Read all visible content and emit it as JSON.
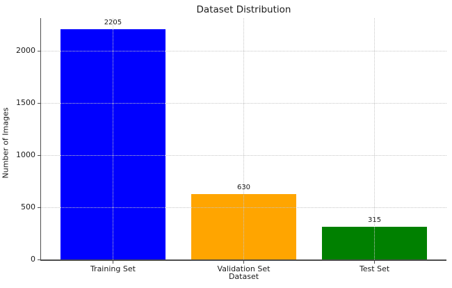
{
  "chart_data": {
    "type": "bar",
    "title": "Dataset Distribution",
    "xlabel": "Dataset",
    "ylabel": "Number of Images",
    "categories": [
      "Training Set",
      "Validation Set",
      "Test Set"
    ],
    "values": [
      2205,
      630,
      315
    ],
    "value_labels": [
      "2205",
      "630",
      "315"
    ],
    "bar_colors": [
      "#0000ff",
      "#ffa500",
      "#008000"
    ],
    "yticks": [
      0,
      500,
      1000,
      1500,
      2000
    ],
    "ylim": [
      0,
      2315
    ],
    "xlim": [
      -0.55,
      2.55
    ],
    "bar_width": 0.8,
    "grid": "dotted",
    "grid_color": "#c6c6c6",
    "legend": "none"
  }
}
